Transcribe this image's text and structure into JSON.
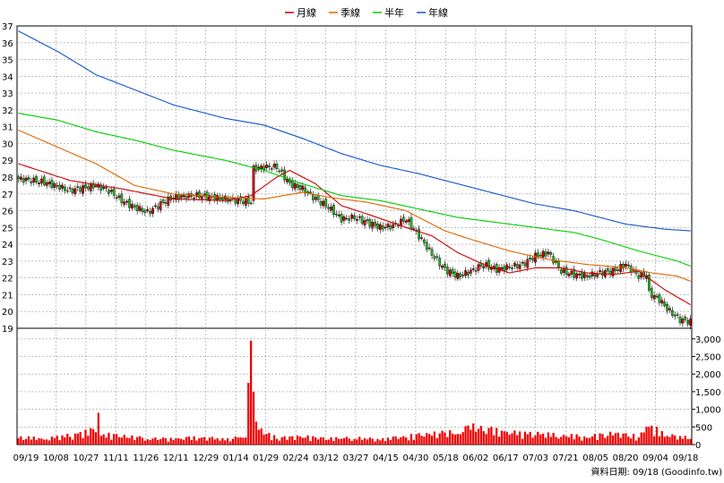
{
  "chart_data": {
    "type": "candlestick",
    "legend": [
      {
        "name": "月線",
        "color": "#cc0000"
      },
      {
        "name": "季線",
        "color": "#dd6600"
      },
      {
        "name": "半年",
        "color": "#00cc00"
      },
      {
        "name": "年線",
        "color": "#1155cc"
      }
    ],
    "price_axis": {
      "min": 19,
      "max": 37,
      "ticks": [
        19,
        20,
        21,
        22,
        23,
        24,
        25,
        26,
        27,
        28,
        29,
        30,
        31,
        32,
        33,
        34,
        35,
        36,
        37
      ]
    },
    "volume_axis": {
      "min": 0,
      "max": 3000,
      "ticks": [
        0,
        500,
        1000,
        1500,
        2000,
        2500,
        3000
      ],
      "tick_labels": [
        "0",
        "500",
        "1,000",
        "1,500",
        "2,000",
        "2,500",
        "3,000"
      ]
    },
    "x_labels": [
      "09/19",
      "10/08",
      "10/27",
      "11/11",
      "11/26",
      "12/11",
      "12/29",
      "01/14",
      "01/29",
      "02/24",
      "03/12",
      "03/27",
      "04/15",
      "04/30",
      "05/18",
      "06/02",
      "06/17",
      "07/03",
      "07/21",
      "08/05",
      "08/20",
      "09/04",
      "09/18"
    ],
    "source_note": "資料日期: 09/18  (Goodinfo.tw)",
    "price_anchors": [
      [
        0,
        27.9
      ],
      [
        10,
        27.7
      ],
      [
        20,
        27.2
      ],
      [
        30,
        27.5
      ],
      [
        35,
        27.2
      ],
      [
        40,
        26.6
      ],
      [
        45,
        26.2
      ],
      [
        50,
        25.9
      ],
      [
        55,
        26.4
      ],
      [
        60,
        26.8
      ],
      [
        70,
        26.9
      ],
      [
        80,
        26.7
      ],
      [
        85,
        26.6
      ],
      [
        90,
        26.5
      ],
      [
        91,
        28.5
      ],
      [
        95,
        28.6
      ],
      [
        100,
        28.6
      ],
      [
        105,
        27.6
      ],
      [
        110,
        27.3
      ],
      [
        115,
        26.7
      ],
      [
        120,
        26.2
      ],
      [
        125,
        25.5
      ],
      [
        130,
        25.6
      ],
      [
        140,
        25.0
      ],
      [
        145,
        25.1
      ],
      [
        150,
        25.5
      ],
      [
        155,
        24.5
      ],
      [
        160,
        23.4
      ],
      [
        165,
        22.5
      ],
      [
        170,
        22.1
      ],
      [
        175,
        22.4
      ],
      [
        180,
        22.8
      ],
      [
        185,
        22.5
      ],
      [
        195,
        22.8
      ],
      [
        200,
        23.3
      ],
      [
        205,
        23.5
      ],
      [
        210,
        22.4
      ],
      [
        215,
        22.2
      ],
      [
        220,
        22.1
      ],
      [
        225,
        22.3
      ],
      [
        230,
        22.4
      ],
      [
        235,
        22.8
      ],
      [
        240,
        22.1
      ],
      [
        243,
        22.2
      ],
      [
        244,
        21.1
      ],
      [
        248,
        20.7
      ],
      [
        252,
        20.0
      ],
      [
        256,
        19.5
      ],
      [
        260,
        19.4
      ]
    ],
    "volume_anchors": [
      [
        0,
        180
      ],
      [
        10,
        140
      ],
      [
        20,
        220
      ],
      [
        30,
        350
      ],
      [
        31,
        900
      ],
      [
        32,
        250
      ],
      [
        40,
        200
      ],
      [
        50,
        150
      ],
      [
        60,
        130
      ],
      [
        70,
        180
      ],
      [
        80,
        120
      ],
      [
        88,
        200
      ],
      [
        89,
        1750
      ],
      [
        90,
        2950
      ],
      [
        91,
        1500
      ],
      [
        92,
        650
      ],
      [
        93,
        420
      ],
      [
        95,
        280
      ],
      [
        100,
        160
      ],
      [
        110,
        190
      ],
      [
        120,
        140
      ],
      [
        130,
        160
      ],
      [
        140,
        120
      ],
      [
        150,
        200
      ],
      [
        160,
        250
      ],
      [
        170,
        300
      ],
      [
        175,
        420
      ],
      [
        180,
        380
      ],
      [
        190,
        280
      ],
      [
        200,
        260
      ],
      [
        210,
        220
      ],
      [
        220,
        190
      ],
      [
        230,
        260
      ],
      [
        240,
        200
      ],
      [
        244,
        500
      ],
      [
        250,
        220
      ],
      [
        260,
        160
      ]
    ],
    "ma_month": [
      [
        0,
        28.8
      ],
      [
        20,
        27.8
      ],
      [
        40,
        27.3
      ],
      [
        60,
        26.7
      ],
      [
        80,
        26.6
      ],
      [
        90,
        26.9
      ],
      [
        100,
        28.0
      ],
      [
        105,
        28.4
      ],
      [
        115,
        27.6
      ],
      [
        125,
        26.3
      ],
      [
        135,
        25.8
      ],
      [
        150,
        25.0
      ],
      [
        160,
        24.5
      ],
      [
        170,
        23.5
      ],
      [
        180,
        22.8
      ],
      [
        190,
        22.3
      ],
      [
        200,
        22.6
      ],
      [
        210,
        22.6
      ],
      [
        220,
        22.3
      ],
      [
        230,
        22.2
      ],
      [
        240,
        22.4
      ],
      [
        250,
        21.3
      ],
      [
        260,
        20.4
      ]
    ],
    "ma_quarter": [
      [
        0,
        30.8
      ],
      [
        15,
        29.8
      ],
      [
        30,
        28.8
      ],
      [
        45,
        27.5
      ],
      [
        60,
        27.0
      ],
      [
        80,
        26.8
      ],
      [
        95,
        26.7
      ],
      [
        110,
        27.1
      ],
      [
        120,
        26.8
      ],
      [
        135,
        26.5
      ],
      [
        150,
        26.0
      ],
      [
        165,
        24.8
      ],
      [
        175,
        24.3
      ],
      [
        190,
        23.6
      ],
      [
        205,
        23.1
      ],
      [
        220,
        22.8
      ],
      [
        235,
        22.6
      ],
      [
        245,
        22.3
      ],
      [
        255,
        22.1
      ],
      [
        260,
        21.8
      ]
    ],
    "ma_half": [
      [
        0,
        31.8
      ],
      [
        15,
        31.4
      ],
      [
        30,
        30.7
      ],
      [
        45,
        30.2
      ],
      [
        60,
        29.6
      ],
      [
        80,
        29.0
      ],
      [
        95,
        28.4
      ],
      [
        110,
        27.6
      ],
      [
        125,
        26.9
      ],
      [
        140,
        26.6
      ],
      [
        155,
        26.1
      ],
      [
        170,
        25.6
      ],
      [
        190,
        25.2
      ],
      [
        205,
        24.9
      ],
      [
        215,
        24.7
      ],
      [
        225,
        24.3
      ],
      [
        240,
        23.6
      ],
      [
        255,
        23.0
      ],
      [
        260,
        22.7
      ]
    ],
    "ma_year": [
      [
        0,
        36.7
      ],
      [
        15,
        35.5
      ],
      [
        30,
        34.1
      ],
      [
        45,
        33.2
      ],
      [
        60,
        32.3
      ],
      [
        80,
        31.5
      ],
      [
        95,
        31.1
      ],
      [
        110,
        30.3
      ],
      [
        125,
        29.4
      ],
      [
        140,
        28.7
      ],
      [
        155,
        28.2
      ],
      [
        170,
        27.6
      ],
      [
        185,
        27.0
      ],
      [
        200,
        26.4
      ],
      [
        215,
        26.0
      ],
      [
        225,
        25.6
      ],
      [
        235,
        25.2
      ],
      [
        250,
        24.9
      ],
      [
        260,
        24.8
      ]
    ]
  }
}
